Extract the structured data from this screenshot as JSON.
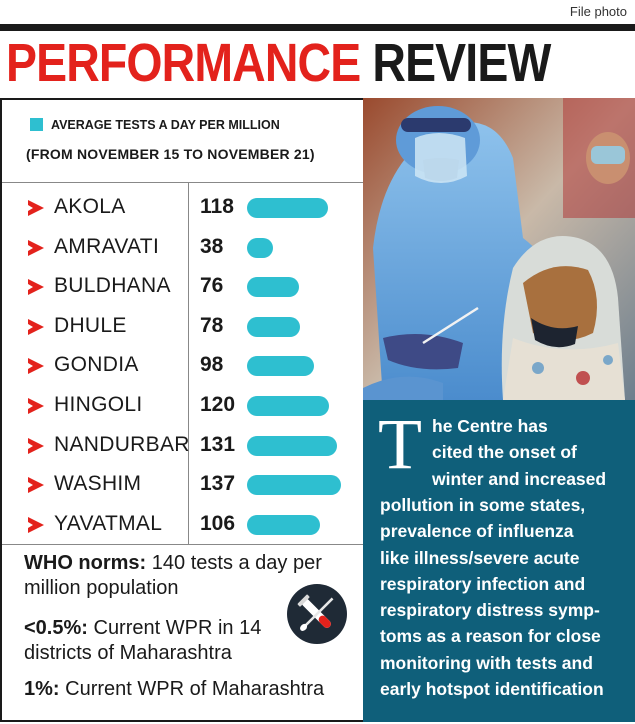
{
  "credit": "File photo",
  "headline": {
    "part1": "PERFORMANCE",
    "part2": "REVIEW"
  },
  "chart_data": {
    "type": "bar",
    "title": "AVERAGE TESTS A DAY PER MILLION",
    "subtitle": "(FROM NOVEMBER 15 TO NOVEMBER 21)",
    "legend": "AVERAGE TESTS A DAY PER MILLION",
    "categories": [
      "AKOLA",
      "AMRAVATI",
      "BULDHANA",
      "DHULE",
      "GONDIA",
      "HINGOLI",
      "NANDURBAR",
      "WASHIM",
      "YAVATMAL"
    ],
    "values": [
      118,
      38,
      76,
      78,
      98,
      120,
      131,
      137,
      106
    ],
    "value_labels": [
      "118",
      "38",
      "76",
      "78",
      "98",
      "120",
      "131",
      "137",
      "106"
    ],
    "bar_color": "#2ebfd0",
    "arrow_color": "#e3221c",
    "orientation": "horizontal",
    "grid": false
  },
  "notes": {
    "who_bold": "WHO norms:",
    "who_text": " 140 tests a day per million population",
    "wpr1_bold": "<0.5%:",
    "wpr1_text": " Current WPR in 14 districts of Maharashtra",
    "wpr2_bold": "1%:",
    "wpr2_text": " Current WPR of Maharashtra",
    "icon": "test-tube-icon"
  },
  "panel": {
    "dropcap": "T",
    "lines": [
      "he Centre has",
      "cited the onset of",
      "winter and increased",
      "pollution in some states,",
      "prevalence of influenza",
      "like illness/severe acute",
      "respiratory infection and",
      "respiratory distress symp-",
      "toms as a reason for close",
      "monitoring with tests and",
      "early hotspot identification"
    ],
    "background": "#0f5f7a"
  },
  "photo": {
    "icon": "health-worker-swab-photo"
  }
}
